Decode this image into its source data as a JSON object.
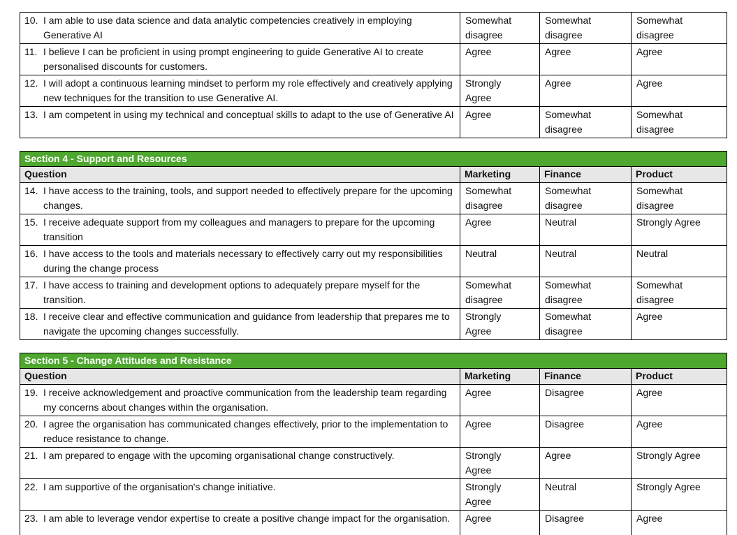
{
  "theme": {
    "section_green": "#4EA72E",
    "header_gray": "#E7E7E7",
    "border_color": "#000000",
    "text_color": "#111111",
    "paper_color": "#ffffff"
  },
  "columns": [
    "Question",
    "Marketing",
    "Finance",
    "Product"
  ],
  "tables": [
    {
      "section_title": "",
      "has_header": false,
      "rows": [
        {
          "num": "10.",
          "text": "I am able to use data science and data analytic competencies creatively in employing Generative AI",
          "answers": [
            "Somewhat disagree",
            "Somewhat disagree",
            "Somewhat disagree"
          ]
        },
        {
          "num": "11.",
          "text": "I believe I can be proficient in using prompt engineering to guide Generative AI to create personalised discounts for customers.",
          "answers": [
            "Agree",
            "Agree",
            "Agree"
          ]
        },
        {
          "num": "12.",
          "text": "I will adopt a continuous learning mindset to perform my role effectively and creatively applying new techniques for the transition to use Generative AI.",
          "answers": [
            "Strongly Agree",
            "Agree",
            "Agree"
          ]
        },
        {
          "num": "13.",
          "text": "I am competent in using my technical and conceptual skills to adapt to the use of Generative AI",
          "answers": [
            "Agree",
            "Somewhat disagree",
            "Somewhat disagree"
          ]
        }
      ]
    },
    {
      "section_title": "Section 4 - Support and Resources",
      "has_header": true,
      "rows": [
        {
          "num": "14.",
          "text": "I have access to the training, tools, and support needed to effectively prepare for the upcoming changes.",
          "answers": [
            "Somewhat disagree",
            "Somewhat disagree",
            "Somewhat disagree"
          ]
        },
        {
          "num": "15.",
          "text": "I receive adequate support from my colleagues and managers to prepare for the upcoming transition",
          "answers": [
            "Agree",
            "Neutral",
            "Strongly Agree"
          ]
        },
        {
          "num": "16.",
          "text": "I have access to the tools and materials necessary to effectively carry out my responsibilities during the change process",
          "answers": [
            "Neutral",
            "Neutral",
            "Neutral"
          ]
        },
        {
          "num": "17.",
          "text": "I have access to training and development options to adequately prepare myself for the transition.",
          "answers": [
            "Somewhat disagree",
            "Somewhat disagree",
            "Somewhat disagree"
          ]
        },
        {
          "num": "18.",
          "text": "I receive clear and effective communication and guidance from leadership that prepares me to navigate the upcoming changes successfully.",
          "answers": [
            "Strongly Agree",
            "Somewhat disagree",
            "Agree"
          ]
        }
      ]
    },
    {
      "section_title": "Section 5 - Change Attitudes and Resistance",
      "has_header": true,
      "rows": [
        {
          "num": "19.",
          "text": "I receive acknowledgement and proactive communication from the leadership team regarding my concerns about changes within the organisation.",
          "answers": [
            "Agree",
            "Disagree",
            "Agree"
          ]
        },
        {
          "num": "20.",
          "text": "I agree the organisation has communicated changes effectively, prior to the implementation to reduce resistance to change.",
          "answers": [
            "Agree",
            "Disagree",
            "Agree"
          ]
        },
        {
          "num": "21.",
          "text": "I am prepared to engage with the upcoming organisational change constructively.",
          "answers": [
            "Strongly Agree",
            "Agree",
            "Strongly Agree"
          ]
        },
        {
          "num": "22.",
          "text": "I am supportive of the organisation's change initiative.",
          "answers": [
            "Strongly Agree",
            "Neutral",
            "Strongly Agree"
          ]
        },
        {
          "num": "23.",
          "text": "I am able to leverage vendor expertise to create a positive change impact for the organisation.",
          "answers": [
            "Agree",
            "Disagree",
            "Agree"
          ]
        }
      ]
    }
  ]
}
